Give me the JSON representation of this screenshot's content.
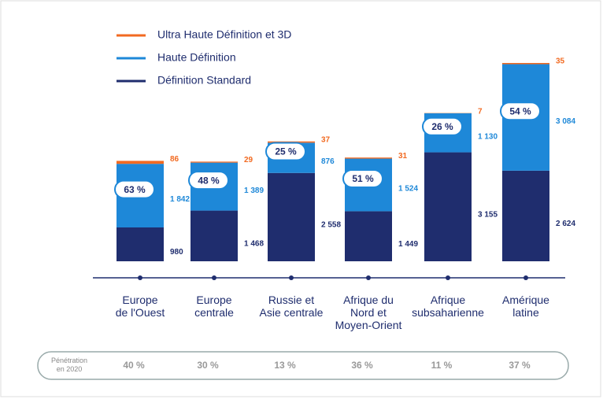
{
  "chart_data": {
    "type": "stacked_bar",
    "categories": [
      "Europe\nde l'Ouest",
      "Europe\ncentrale",
      "Russie et\nAsie centrale",
      "Afrique du\nNord et\nMoyen-Orient",
      "Afrique\nsubsaharienne",
      "Amérique\nlatine"
    ],
    "series": [
      {
        "name": "Définition Standard",
        "color": "#1f2d6e",
        "values": [
          980,
          1468,
          2558,
          1449,
          3155,
          2624
        ],
        "value_labels": [
          "980",
          "1 468",
          "2 558",
          "1 449",
          "3 155",
          "2 624"
        ]
      },
      {
        "name": "Haute Définition",
        "color": "#1e88d8",
        "values": [
          1842,
          1389,
          876,
          1524,
          1130,
          3084
        ],
        "value_labels": [
          "1 842",
          "1 389",
          "876",
          "1 524",
          "1 130",
          "3 084"
        ]
      },
      {
        "name": "Ultra Haute Définition et 3D",
        "color": "#f26a21",
        "values": [
          86,
          29,
          37,
          31,
          7,
          35
        ]
      }
    ],
    "hd_share": {
      "values": [
        63,
        48,
        25,
        51,
        26,
        54
      ],
      "labels": [
        "63 %",
        "48 %",
        "25 %",
        "51 %",
        "26 %",
        "54 %"
      ]
    },
    "penetration": {
      "title": "Pénétration\nen 2020",
      "values": [
        40,
        30,
        13,
        36,
        11,
        37
      ],
      "labels": [
        "40 %",
        "30 %",
        "13 %",
        "36 %",
        "11 %",
        "37 %"
      ]
    },
    "legend": "top-left"
  }
}
